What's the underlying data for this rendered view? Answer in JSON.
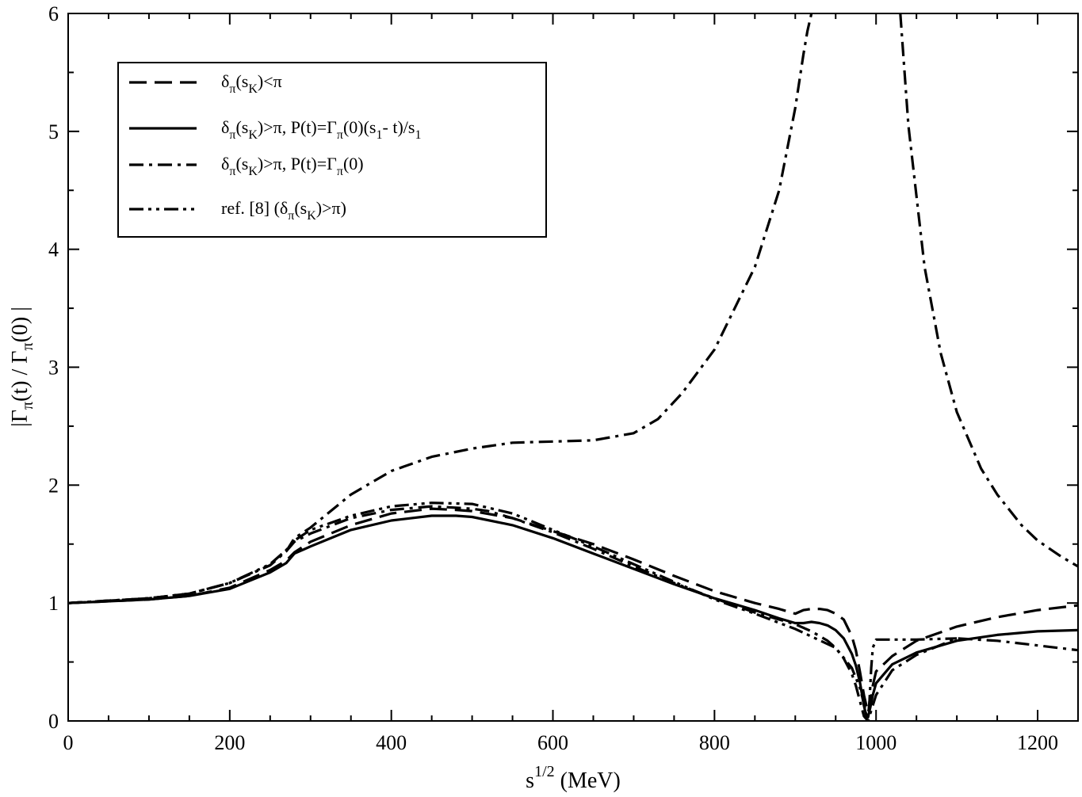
{
  "chart_data": {
    "type": "line",
    "xlabel": {
      "base": "s",
      "sup": "1/2",
      "rest": " (MeV)"
    },
    "ylabel": {
      "pre": "|",
      "g1": "Γ",
      "sub1": "π",
      "mid": "(t) / ",
      "g2": "Γ",
      "sub2": "π",
      "post": "(0) |"
    },
    "xlim": [
      0,
      1250
    ],
    "ylim": [
      0,
      6
    ],
    "x_ticks": [
      0,
      200,
      400,
      600,
      800,
      1000,
      1200
    ],
    "x_tick_labels": [
      "0",
      "200",
      "400",
      "600",
      "800",
      "1000",
      "1200"
    ],
    "y_ticks": [
      0,
      1,
      2,
      3,
      4,
      5,
      6
    ],
    "y_tick_labels": [
      "0",
      "1",
      "2",
      "3",
      "4",
      "5",
      "6"
    ],
    "grid": false,
    "legend_position": "top-left",
    "legend": [
      {
        "dash": "dashed",
        "parts": [
          [
            "δ",
            "n"
          ],
          [
            "π",
            "sub"
          ],
          [
            "(s",
            "n"
          ],
          [
            "K",
            "sub"
          ],
          [
            ")<π",
            "n"
          ]
        ]
      },
      {
        "dash": "solid",
        "parts": [
          [
            "δ",
            "n"
          ],
          [
            "π",
            "sub"
          ],
          [
            "(s",
            "n"
          ],
          [
            "K",
            "sub"
          ],
          [
            ")>π,  P(t)=Γ",
            "n"
          ],
          [
            "π",
            "sub"
          ],
          [
            "(0)(s",
            "n"
          ],
          [
            "1",
            "sub"
          ],
          [
            "- t)/s",
            "n"
          ],
          [
            "1",
            "sub"
          ]
        ]
      },
      {
        "dash": "dashdot",
        "parts": [
          [
            "δ",
            "n"
          ],
          [
            "π",
            "sub"
          ],
          [
            "(s",
            "n"
          ],
          [
            "K",
            "sub"
          ],
          [
            ")>π,  P(t)=Γ",
            "n"
          ],
          [
            "π",
            "sub"
          ],
          [
            "(0)",
            "n"
          ]
        ]
      },
      {
        "dash": "dashdotdot",
        "parts": [
          [
            "ref. [8]  (δ",
            "n"
          ],
          [
            "π",
            "sub"
          ],
          [
            "(s",
            "n"
          ],
          [
            "K",
            "sub"
          ],
          [
            ")>π)",
            "n"
          ]
        ]
      }
    ],
    "series": [
      {
        "dash": "dashed",
        "x": [
          0,
          100,
          150,
          200,
          250,
          270,
          280,
          300,
          350,
          400,
          450,
          480,
          500,
          550,
          600,
          650,
          700,
          750,
          800,
          850,
          880,
          900,
          910,
          920,
          930,
          940,
          950,
          960,
          970,
          975,
          980,
          985,
          990,
          993,
          996,
          1000,
          1020,
          1050,
          1100,
          1150,
          1200,
          1250
        ],
        "y": [
          1.0,
          1.03,
          1.06,
          1.13,
          1.28,
          1.36,
          1.43,
          1.52,
          1.66,
          1.76,
          1.8,
          1.79,
          1.78,
          1.72,
          1.61,
          1.5,
          1.37,
          1.23,
          1.1,
          1.0,
          0.95,
          0.91,
          0.94,
          0.95,
          0.95,
          0.94,
          0.91,
          0.86,
          0.72,
          0.6,
          0.42,
          0.22,
          0.07,
          0.16,
          0.3,
          0.42,
          0.55,
          0.68,
          0.8,
          0.88,
          0.94,
          0.98
        ]
      },
      {
        "dash": "solid",
        "x": [
          0,
          100,
          150,
          200,
          250,
          270,
          280,
          300,
          350,
          400,
          450,
          480,
          500,
          550,
          600,
          650,
          700,
          750,
          800,
          850,
          880,
          900,
          910,
          920,
          930,
          940,
          950,
          960,
          970,
          975,
          980,
          985,
          988,
          990,
          993,
          996,
          1000,
          1020,
          1050,
          1100,
          1150,
          1200,
          1250
        ],
        "y": [
          1.0,
          1.03,
          1.06,
          1.12,
          1.26,
          1.34,
          1.42,
          1.48,
          1.62,
          1.7,
          1.74,
          1.74,
          1.73,
          1.66,
          1.55,
          1.42,
          1.29,
          1.16,
          1.04,
          0.94,
          0.87,
          0.83,
          0.83,
          0.84,
          0.83,
          0.81,
          0.77,
          0.7,
          0.57,
          0.47,
          0.33,
          0.13,
          0.04,
          0.03,
          0.12,
          0.22,
          0.32,
          0.48,
          0.58,
          0.68,
          0.73,
          0.76,
          0.77
        ]
      },
      {
        "dash": "dashdot",
        "x": [
          0,
          100,
          150,
          200,
          250,
          270,
          280,
          300,
          350,
          400,
          450,
          500,
          520,
          550,
          600,
          650,
          700,
          750,
          800,
          850,
          880,
          900,
          910,
          920,
          930,
          940,
          950,
          960,
          970,
          975,
          980,
          985,
          990,
          1000,
          1020,
          1050,
          1100,
          1150,
          1200,
          1250
        ],
        "y": [
          1.0,
          1.04,
          1.08,
          1.17,
          1.32,
          1.44,
          1.52,
          1.59,
          1.72,
          1.79,
          1.82,
          1.8,
          1.78,
          1.72,
          1.6,
          1.46,
          1.31,
          1.17,
          1.04,
          0.92,
          0.86,
          0.82,
          0.79,
          0.76,
          0.72,
          0.68,
          0.62,
          0.53,
          0.4,
          0.3,
          0.17,
          0.04,
          0.0,
          0.22,
          0.43,
          0.56,
          0.7,
          0.68,
          0.64,
          0.6
        ]
      },
      {
        "dash": "dashdotdot",
        "x": [
          0,
          100,
          150,
          200,
          250,
          270,
          280,
          300,
          350,
          400,
          450,
          500,
          550,
          600,
          650,
          700,
          750,
          800,
          850,
          900,
          950,
          970,
          980,
          985,
          988,
          990,
          992,
          994,
          996,
          1000,
          1050,
          1100
        ],
        "y": [
          1.0,
          1.04,
          1.08,
          1.17,
          1.33,
          1.45,
          1.53,
          1.62,
          1.74,
          1.82,
          1.85,
          1.84,
          1.76,
          1.62,
          1.48,
          1.33,
          1.18,
          1.03,
          0.91,
          0.78,
          0.62,
          0.45,
          0.28,
          0.15,
          0.05,
          0.02,
          0.18,
          0.45,
          0.62,
          0.69,
          0.69,
          0.7
        ]
      },
      {
        "dash": "dashdot",
        "x": [
          0,
          100,
          150,
          200,
          250,
          270,
          280,
          300,
          350,
          400,
          450,
          500,
          550,
          600,
          650,
          700,
          730,
          760,
          800,
          850,
          880,
          900,
          910,
          915,
          920
        ],
        "y": [
          1.0,
          1.04,
          1.08,
          1.17,
          1.32,
          1.44,
          1.55,
          1.64,
          1.92,
          2.12,
          2.24,
          2.31,
          2.36,
          2.37,
          2.38,
          2.44,
          2.56,
          2.78,
          3.15,
          3.85,
          4.5,
          5.2,
          5.65,
          5.85,
          6.0
        ]
      },
      {
        "dash": "dashdot",
        "x": [
          1030,
          1040,
          1060,
          1080,
          1100,
          1130,
          1150,
          1180,
          1200,
          1230,
          1250
        ],
        "y": [
          6.0,
          5.05,
          3.85,
          3.12,
          2.62,
          2.14,
          1.92,
          1.66,
          1.53,
          1.39,
          1.31
        ]
      }
    ]
  }
}
